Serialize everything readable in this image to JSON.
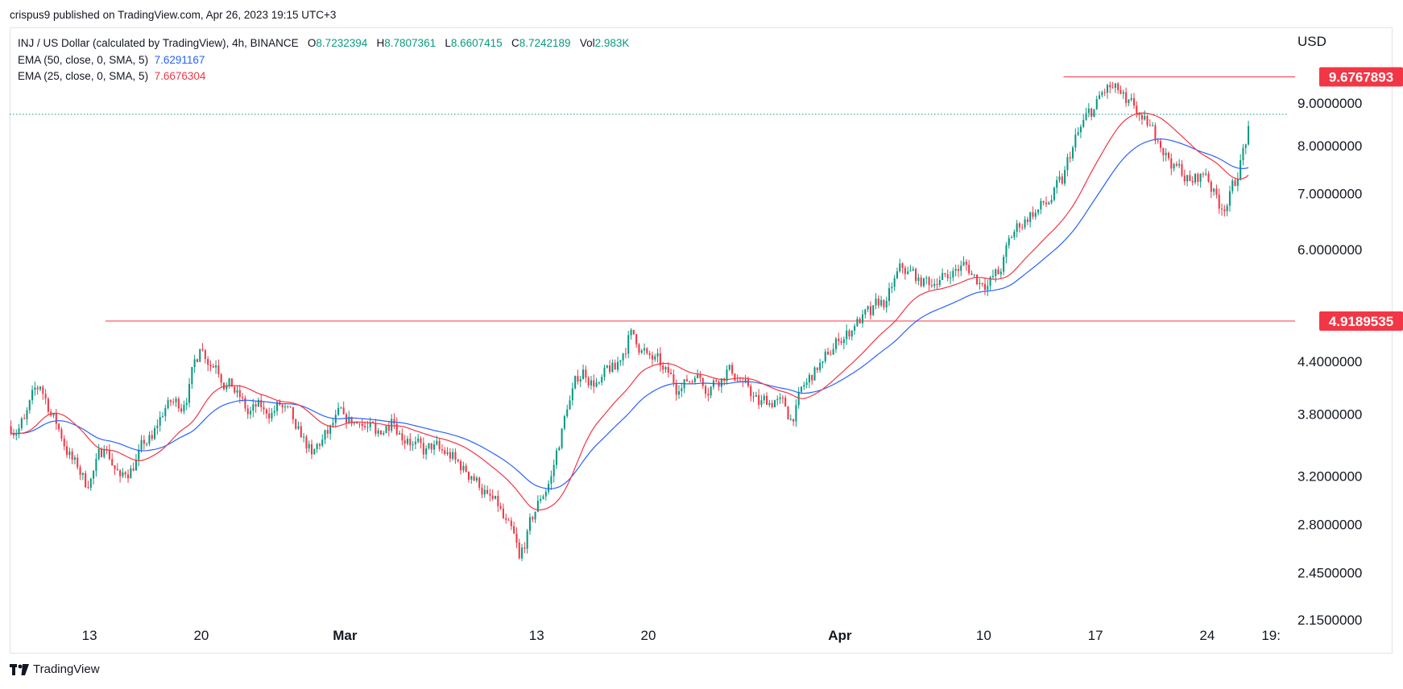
{
  "header": {
    "publisher": "crispus9 published on TradingView.com, Apr 26, 2023 19:15 UTC+3"
  },
  "legend": {
    "symbol": "INJ / US Dollar (calculated by TradingView), 4h, BINANCE",
    "open_label": "O",
    "open": "8.7232394",
    "high_label": "H",
    "high": "8.7807361",
    "low_label": "L",
    "low": "8.6607415",
    "close_label": "C",
    "close": "8.7242189",
    "vol_label": "Vol",
    "vol": "2.983K",
    "ema50_label": "EMA (50, close, 0, SMA, 5)",
    "ema50_value": "7.6291167",
    "ema25_label": "EMA (25, close, 0, SMA, 5)",
    "ema25_value": "7.6676304"
  },
  "axis": {
    "currency": "USD"
  },
  "footer": {
    "brand": "TradingView"
  },
  "colors": {
    "up": "#089981",
    "down": "#f23645",
    "ema50": "#2962ff",
    "ema25": "#f23645",
    "level": "#f23645",
    "last_price_line": "#089981"
  },
  "chart_data": {
    "type": "candlestick",
    "title": "",
    "xlabel": "",
    "ylabel": "",
    "y_scale": "log",
    "ylim": [
      2.15,
      11.0
    ],
    "y_ticks": [
      "9.0000000",
      "8.0000000",
      "7.0000000",
      "6.0000000",
      "4.4000000",
      "3.8000000",
      "3.2000000",
      "2.8000000",
      "2.4500000",
      "2.1500000"
    ],
    "x_ticks": [
      "13",
      "20",
      "Mar",
      "13",
      "20",
      "Apr",
      "10",
      "17",
      "24",
      "19:"
    ],
    "x_range": [
      "2023-02-08",
      "2023-04-29"
    ],
    "levels": [
      {
        "label": "9.6767893",
        "value": 9.6767893,
        "from": "2023-04-15"
      },
      {
        "label": "4.9189535",
        "value": 4.9189535,
        "from": "2023-02-14"
      }
    ],
    "last_price": 8.7242189,
    "closes": [
      {
        "date": "2023-02-08",
        "close": 3.75
      },
      {
        "date": "2023-02-09",
        "close": 4.1
      },
      {
        "date": "2023-02-10",
        "close": 3.7
      },
      {
        "date": "2023-02-11",
        "close": 3.35
      },
      {
        "date": "2023-02-12",
        "close": 3.1
      },
      {
        "date": "2023-02-13",
        "close": 3.45
      },
      {
        "date": "2023-02-14",
        "close": 3.2
      },
      {
        "date": "2023-02-15",
        "close": 3.35
      },
      {
        "date": "2023-02-16",
        "close": 3.55
      },
      {
        "date": "2023-02-17",
        "close": 3.95
      },
      {
        "date": "2023-02-18",
        "close": 3.9
      },
      {
        "date": "2023-02-19",
        "close": 4.55
      },
      {
        "date": "2023-02-20",
        "close": 4.35
      },
      {
        "date": "2023-02-21",
        "close": 4.1
      },
      {
        "date": "2023-02-22",
        "close": 3.8
      },
      {
        "date": "2023-02-23",
        "close": 3.85
      },
      {
        "date": "2023-02-24",
        "close": 3.9
      },
      {
        "date": "2023-02-25",
        "close": 3.65
      },
      {
        "date": "2023-02-26",
        "close": 3.4
      },
      {
        "date": "2023-02-27",
        "close": 3.6
      },
      {
        "date": "2023-02-28",
        "close": 3.8
      },
      {
        "date": "2023-03-01",
        "close": 3.7
      },
      {
        "date": "2023-03-02",
        "close": 3.6
      },
      {
        "date": "2023-03-03",
        "close": 3.75
      },
      {
        "date": "2023-03-04",
        "close": 3.55
      },
      {
        "date": "2023-03-05",
        "close": 3.4
      },
      {
        "date": "2023-03-06",
        "close": 3.45
      },
      {
        "date": "2023-03-07",
        "close": 3.35
      },
      {
        "date": "2023-03-08",
        "close": 3.2
      },
      {
        "date": "2023-03-09",
        "close": 3.05
      },
      {
        "date": "2023-03-10",
        "close": 2.85
      },
      {
        "date": "2023-03-11",
        "close": 2.55
      },
      {
        "date": "2023-03-12",
        "close": 2.9
      },
      {
        "date": "2023-03-13",
        "close": 3.2
      },
      {
        "date": "2023-03-14",
        "close": 3.85
      },
      {
        "date": "2023-03-15",
        "close": 4.3
      },
      {
        "date": "2023-03-16",
        "close": 4.15
      },
      {
        "date": "2023-03-17",
        "close": 4.3
      },
      {
        "date": "2023-03-18",
        "close": 4.8
      },
      {
        "date": "2023-03-19",
        "close": 4.5
      },
      {
        "date": "2023-03-20",
        "close": 4.3
      },
      {
        "date": "2023-03-21",
        "close": 4.05
      },
      {
        "date": "2023-03-22",
        "close": 4.2
      },
      {
        "date": "2023-03-23",
        "close": 4.1
      },
      {
        "date": "2023-03-24",
        "close": 4.3
      },
      {
        "date": "2023-03-25",
        "close": 4.15
      },
      {
        "date": "2023-03-26",
        "close": 3.9
      },
      {
        "date": "2023-03-27",
        "close": 3.95
      },
      {
        "date": "2023-03-28",
        "close": 3.75
      },
      {
        "date": "2023-03-29",
        "close": 4.15
      },
      {
        "date": "2023-03-30",
        "close": 4.4
      },
      {
        "date": "2023-03-31",
        "close": 4.65
      },
      {
        "date": "2023-04-01",
        "close": 4.85
      },
      {
        "date": "2023-04-02",
        "close": 5.0
      },
      {
        "date": "2023-04-03",
        "close": 5.2
      },
      {
        "date": "2023-04-04",
        "close": 5.7
      },
      {
        "date": "2023-04-05",
        "close": 5.55
      },
      {
        "date": "2023-04-06",
        "close": 5.45
      },
      {
        "date": "2023-04-07",
        "close": 5.55
      },
      {
        "date": "2023-04-08",
        "close": 5.75
      },
      {
        "date": "2023-04-09",
        "close": 5.45
      },
      {
        "date": "2023-04-10",
        "close": 5.6
      },
      {
        "date": "2023-04-11",
        "close": 6.3
      },
      {
        "date": "2023-04-12",
        "close": 6.65
      },
      {
        "date": "2023-04-13",
        "close": 6.8
      },
      {
        "date": "2023-04-14",
        "close": 7.2
      },
      {
        "date": "2023-04-15",
        "close": 8.3
      },
      {
        "date": "2023-04-16",
        "close": 8.85
      },
      {
        "date": "2023-04-17",
        "close": 9.4
      },
      {
        "date": "2023-04-18",
        "close": 9.0
      },
      {
        "date": "2023-04-19",
        "close": 8.6
      },
      {
        "date": "2023-04-20",
        "close": 8.1
      },
      {
        "date": "2023-04-21",
        "close": 7.6
      },
      {
        "date": "2023-04-22",
        "close": 7.25
      },
      {
        "date": "2023-04-23",
        "close": 7.4
      },
      {
        "date": "2023-04-24",
        "close": 6.7
      },
      {
        "date": "2023-04-25",
        "close": 7.3
      },
      {
        "date": "2023-04-26",
        "close": 8.72
      }
    ]
  }
}
